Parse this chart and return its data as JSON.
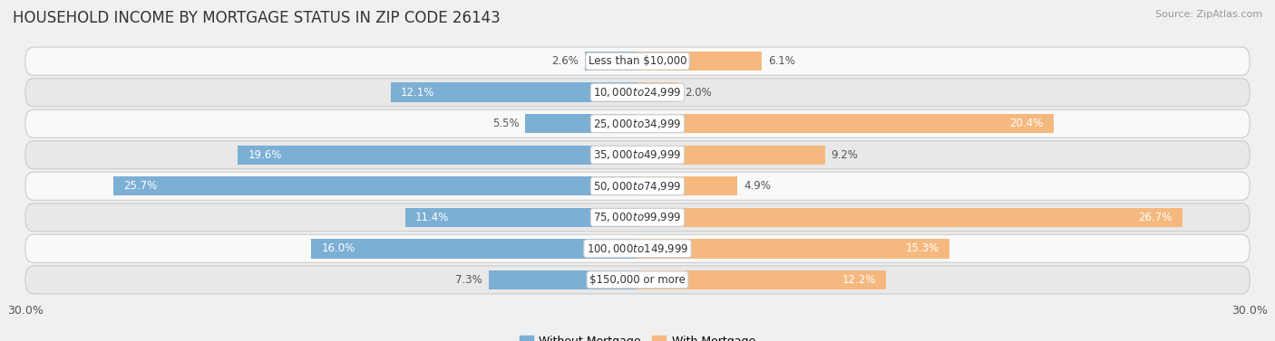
{
  "title": "HOUSEHOLD INCOME BY MORTGAGE STATUS IN ZIP CODE 26143",
  "source": "Source: ZipAtlas.com",
  "categories": [
    "Less than $10,000",
    "$10,000 to $24,999",
    "$25,000 to $34,999",
    "$35,000 to $49,999",
    "$50,000 to $74,999",
    "$75,000 to $99,999",
    "$100,000 to $149,999",
    "$150,000 or more"
  ],
  "without_mortgage": [
    2.6,
    12.1,
    5.5,
    19.6,
    25.7,
    11.4,
    16.0,
    7.3
  ],
  "with_mortgage": [
    6.1,
    2.0,
    20.4,
    9.2,
    4.9,
    26.7,
    15.3,
    12.2
  ],
  "color_without": "#7bafd4",
  "color_with": "#f5b97f",
  "xlim": 30.0,
  "background_color": "#f0f0f0",
  "row_bg_light": "#f9f9f9",
  "row_bg_dark": "#e8e8e8",
  "row_border_color": "#cccccc",
  "title_fontsize": 12,
  "label_fontsize": 8.5,
  "legend_fontsize": 9,
  "axis_fontsize": 9,
  "title_color": "#333333",
  "source_color": "#999999",
  "value_color_dark": "#555555",
  "value_color_light": "#ffffff"
}
